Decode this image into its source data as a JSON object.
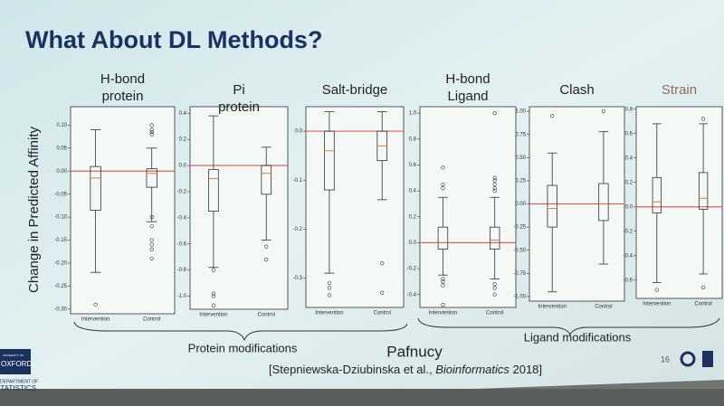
{
  "slide": {
    "title": "What About DL Methods?",
    "y_label": "Change in Predicted Affinity",
    "groups": [
      "Protein modifications",
      "Pafnucy",
      "Ligand modifications"
    ],
    "citation": {
      "before": "[Stepniewska-Dziubinska et al., ",
      "journal": "Bioinformatics",
      "after": " 2018]"
    },
    "page": "16",
    "logo": [
      "UNIVERSITY OF",
      "OXFORD",
      "DEPARTMENT OF",
      "STATISTICS"
    ]
  },
  "chart_data": [
    {
      "type": "box",
      "title": [
        "H-bond",
        "protein"
      ],
      "title_color": "#222222",
      "categories": [
        "Intervention",
        "Control"
      ],
      "boxes": [
        {
          "whislo": -0.22,
          "q1": -0.085,
          "med": -0.015,
          "q3": 0.01,
          "whishi": 0.09,
          "fliers": [
            -0.29
          ]
        },
        {
          "whislo": -0.11,
          "q1": -0.035,
          "med": -0.005,
          "q3": 0.005,
          "whishi": 0.05,
          "fliers": [
            0.1,
            0.09,
            0.085,
            0.08,
            -0.1,
            -0.12,
            -0.15,
            -0.16,
            -0.17,
            -0.19
          ]
        }
      ],
      "ylim": [
        -0.31,
        0.14
      ],
      "yticks": [
        {
          "value": 0.1,
          "label": "0.10"
        },
        {
          "value": 0.05,
          "label": "0.05"
        },
        {
          "value": 0,
          "label": "0.00"
        },
        {
          "value": -0.05,
          "label": "-0.05"
        },
        {
          "value": -0.1,
          "label": "-0.10"
        },
        {
          "value": -0.15,
          "label": "-0.15"
        },
        {
          "value": -0.2,
          "label": "-0.20"
        },
        {
          "value": -0.25,
          "label": "-0.25"
        },
        {
          "value": -0.3,
          "label": "-0.30"
        }
      ],
      "hline": {
        "value": 0,
        "color": "#e06060"
      }
    },
    {
      "type": "box",
      "title": [
        "Pi",
        "protein"
      ],
      "title_color": "#222222",
      "categories": [
        "Intervention",
        "Control"
      ],
      "boxes": [
        {
          "whislo": -0.78,
          "q1": -0.35,
          "med": -0.1,
          "q3": -0.03,
          "whishi": 0.38,
          "fliers": [
            -0.8,
            -0.98,
            -1.0,
            -1.07
          ]
        },
        {
          "whislo": -0.57,
          "q1": -0.22,
          "med": -0.06,
          "q3": 0.0,
          "whishi": 0.14,
          "fliers": [
            -0.62,
            -0.72
          ]
        }
      ],
      "ylim": [
        -1.1,
        0.45
      ],
      "yticks": [
        0.4,
        0.2,
        {
          "value": 0,
          "label": "0.0"
        },
        -0.2,
        -0.4,
        -0.6,
        -0.8,
        {
          "value": -1,
          "label": "-1.0"
        }
      ],
      "hline": {
        "value": 0,
        "color": "#e06060"
      }
    },
    {
      "type": "box",
      "title": [
        "Salt-bridge"
      ],
      "title_color": "#222222",
      "categories": [
        "Intervention",
        "Control"
      ],
      "boxes": [
        {
          "whislo": -0.29,
          "q1": -0.12,
          "med": -0.04,
          "q3": 0.0,
          "whishi": 0.04,
          "fliers": [
            -0.31,
            -0.32,
            -0.335
          ]
        },
        {
          "whislo": -0.14,
          "q1": -0.06,
          "med": -0.03,
          "q3": 0.0,
          "whishi": 0.04,
          "fliers": [
            -0.27,
            -0.33
          ]
        }
      ],
      "ylim": [
        -0.36,
        0.05
      ],
      "yticks": [
        {
          "value": 0,
          "label": "0.0"
        },
        -0.1,
        -0.2,
        -0.3
      ],
      "hline": {
        "value": 0,
        "color": "#e06060"
      }
    },
    {
      "type": "box",
      "title": [
        "H-bond",
        "Ligand"
      ],
      "title_color": "#222222",
      "categories": [
        "Intervention",
        "Control"
      ],
      "boxes": [
        {
          "whislo": -0.25,
          "q1": -0.05,
          "med": 0.0,
          "q3": 0.12,
          "whishi": 0.35,
          "fliers": [
            0.58,
            0.45,
            0.42,
            -0.28,
            -0.3,
            -0.33,
            -0.48
          ]
        },
        {
          "whislo": -0.28,
          "q1": -0.05,
          "med": 0.02,
          "q3": 0.12,
          "whishi": 0.35,
          "fliers": [
            1.0,
            0.5,
            0.48,
            0.45,
            0.42,
            0.4,
            -0.32,
            -0.35,
            -0.4
          ]
        }
      ],
      "ylim": [
        -0.5,
        1.05
      ],
      "yticks": [
        {
          "value": 1,
          "label": "1.0"
        },
        0.8,
        0.6,
        0.4,
        0.2,
        {
          "value": 0,
          "label": "0.0"
        },
        -0.2,
        -0.4
      ],
      "hline": {
        "value": 0,
        "color": "#e06060"
      }
    },
    {
      "type": "box",
      "title": [
        "Clash"
      ],
      "title_color": "#222222",
      "categories": [
        "Intervention",
        "Control"
      ],
      "boxes": [
        {
          "whislo": -0.95,
          "q1": -0.25,
          "med": -0.05,
          "q3": 0.2,
          "whishi": 0.55,
          "fliers": [
            0.95
          ]
        },
        {
          "whislo": -0.65,
          "q1": -0.18,
          "med": 0.0,
          "q3": 0.22,
          "whishi": 0.78,
          "fliers": [
            1.0
          ]
        }
      ],
      "ylim": [
        -1.05,
        1.05
      ],
      "yticks": [
        {
          "value": 1,
          "label": "1.00"
        },
        0.75,
        {
          "value": 0.5,
          "label": "0.50"
        },
        0.25,
        {
          "value": 0,
          "label": "0.00"
        },
        -0.25,
        {
          "value": -0.5,
          "label": "-0.50"
        },
        -0.75,
        {
          "value": -1,
          "label": "-1.00"
        }
      ],
      "hline": {
        "value": 0,
        "color": "#e06060"
      }
    },
    {
      "type": "box",
      "title": [
        "Strain"
      ],
      "title_color": "#8a7060",
      "categories": [
        "Intervention",
        "Control"
      ],
      "boxes": [
        {
          "whislo": -0.62,
          "q1": -0.05,
          "med": 0.04,
          "q3": 0.24,
          "whishi": 0.68,
          "fliers": [
            -0.68
          ]
        },
        {
          "whislo": -0.55,
          "q1": -0.02,
          "med": 0.07,
          "q3": 0.28,
          "whishi": 0.68,
          "fliers": [
            0.72,
            -0.66
          ]
        }
      ],
      "ylim": [
        -0.75,
        0.82
      ],
      "yticks": [
        0.8,
        0.6,
        0.4,
        0.2,
        {
          "value": 0,
          "label": "0.0"
        },
        -0.2,
        -0.4,
        -0.6
      ],
      "hline": {
        "value": 0,
        "color": "#e06060"
      }
    }
  ]
}
